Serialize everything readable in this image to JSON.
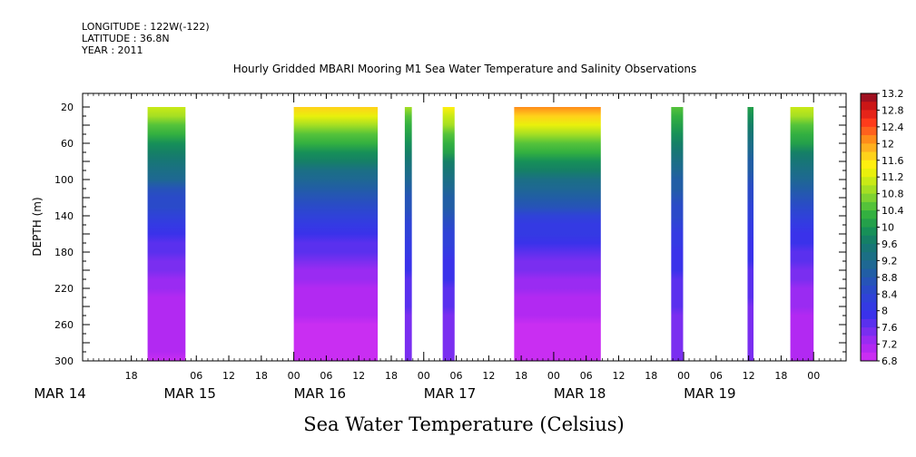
{
  "header": {
    "longitude": "LONGITUDE : 122W(-122)",
    "latitude": "LATITUDE : 36.8N",
    "year": "YEAR : 2011"
  },
  "chart_data": {
    "type": "heatmap",
    "title": "Hourly Gridded MBARI Mooring M1 Sea Water Temperature and Salinity Observations",
    "xlabel": "Sea Water Temperature (Celsius)",
    "ylabel": "DEPTH (m)",
    "x_unit": "hours since MAR 14 00:00",
    "xlim": [
      9,
      150
    ],
    "ylim": [
      300,
      5
    ],
    "x_ticks": [
      {
        "h": 18,
        "label": "18"
      },
      {
        "h": 30,
        "label": "06"
      },
      {
        "h": 36,
        "label": "12"
      },
      {
        "h": 42,
        "label": "18"
      },
      {
        "h": 48,
        "label": "00"
      },
      {
        "h": 54,
        "label": "06"
      },
      {
        "h": 60,
        "label": "12"
      },
      {
        "h": 66,
        "label": "18"
      },
      {
        "h": 72,
        "label": "00"
      },
      {
        "h": 78,
        "label": "06"
      },
      {
        "h": 84,
        "label": "12"
      },
      {
        "h": 90,
        "label": "18"
      },
      {
        "h": 96,
        "label": "00"
      },
      {
        "h": 102,
        "label": "06"
      },
      {
        "h": 108,
        "label": "12"
      },
      {
        "h": 114,
        "label": "18"
      },
      {
        "h": 120,
        "label": "00"
      },
      {
        "h": 126,
        "label": "06"
      },
      {
        "h": 132,
        "label": "12"
      },
      {
        "h": 138,
        "label": "18"
      },
      {
        "h": 144,
        "label": "00"
      }
    ],
    "date_labels": [
      {
        "h": 0,
        "label": "MAR 14"
      },
      {
        "h": 24,
        "label": "MAR 15"
      },
      {
        "h": 48,
        "label": "MAR 16"
      },
      {
        "h": 72,
        "label": "MAR 17"
      },
      {
        "h": 96,
        "label": "MAR 18"
      },
      {
        "h": 120,
        "label": "MAR 19"
      }
    ],
    "y_ticks": [
      20,
      60,
      100,
      140,
      180,
      220,
      260,
      300
    ],
    "data_blocks": [
      {
        "start": 21,
        "end": 28,
        "surface": 11.2,
        "deep": 7.0
      },
      {
        "start": 48,
        "end": 63.5,
        "surface": 11.6,
        "deep": 6.9
      },
      {
        "start": 68.5,
        "end": 69.8,
        "surface": 10.8,
        "deep": 7.5
      },
      {
        "start": 75.5,
        "end": 77.7,
        "surface": 11.4,
        "deep": 7.5
      },
      {
        "start": 88.7,
        "end": 104.7,
        "surface": 12.0,
        "deep": 6.9
      },
      {
        "start": 117.7,
        "end": 119.9,
        "surface": 10.6,
        "deep": 7.5
      },
      {
        "start": 131.8,
        "end": 132.9,
        "surface": 10.0,
        "deep": 7.5
      },
      {
        "start": 139.7,
        "end": 144,
        "surface": 11.2,
        "deep": 7.1
      }
    ],
    "colorbar": {
      "min": 6.8,
      "max": 13.2,
      "labels": [
        "13.2",
        "12.8",
        "12.4",
        "12",
        "11.6",
        "11.2",
        "10.8",
        "10.4",
        "10",
        "9.6",
        "9.2",
        "8.8",
        "8.4",
        "8",
        "7.6",
        "7.2",
        "6.8"
      ],
      "colors": [
        "#9f0f1f",
        "#cc1616",
        "#e52419",
        "#ff3b1b",
        "#ff611d",
        "#ff8c1a",
        "#ffb01f",
        "#ffd21a",
        "#ffef0f",
        "#e9f00c",
        "#c9ea16",
        "#a5df23",
        "#7fd231",
        "#55c33a",
        "#33b040",
        "#24a04a",
        "#179058",
        "#158066",
        "#177676",
        "#1b6f85",
        "#1e6893",
        "#215ea5",
        "#2654b8",
        "#2a4ac9",
        "#2f42d8",
        "#343ae3",
        "#3a32ea",
        "#5a30ee",
        "#7a2ef0",
        "#9a2bf2",
        "#b229f2",
        "#c92ef2"
      ]
    }
  }
}
